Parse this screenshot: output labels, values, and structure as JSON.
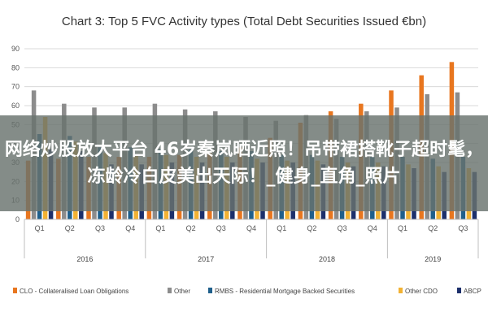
{
  "chart_data": {
    "type": "bar",
    "title": "Chart 3: Top 5 FVC Activity types (Total Debt Securities Issued €bn)",
    "ylim": [
      0,
      90
    ],
    "yticks": [
      "0",
      "10",
      "20",
      "30",
      "40",
      "50",
      "60",
      "70",
      "80",
      "90"
    ],
    "grid": true,
    "legend_position": "bottom",
    "categories": [
      "Q1",
      "Q2",
      "Q3",
      "Q4",
      "Q1",
      "Q2",
      "Q3",
      "Q4",
      "Q1",
      "Q2",
      "Q3",
      "Q4",
      "Q1",
      "Q2",
      "Q3"
    ],
    "groups": [
      {
        "label": "2016",
        "count": 4
      },
      {
        "label": "2017",
        "count": 4
      },
      {
        "label": "2018",
        "count": 4
      },
      {
        "label": "2019",
        "count": 3
      }
    ],
    "series": [
      {
        "name": "CLO - Collateralised Loan Obligations",
        "color": "#e8761f",
        "values": [
          31,
          32,
          33,
          33,
          33,
          34,
          35,
          38,
          43,
          51,
          57,
          61,
          68,
          76,
          83
        ]
      },
      {
        "name": "Other",
        "color": "#8c8c8c",
        "values": [
          68,
          61,
          59,
          59,
          61,
          58,
          57,
          54,
          52,
          55,
          53,
          57,
          59,
          66,
          67
        ]
      },
      {
        "name": "RMBS - Residential Mortgage Backed Securities",
        "color": "#1f5f8b",
        "values": [
          45,
          44,
          38,
          38,
          37,
          37,
          36,
          36,
          34,
          34,
          33,
          33,
          33,
          32,
          33
        ]
      },
      {
        "name": "Other CDO",
        "color": "#f2b233",
        "values": [
          54,
          41,
          35,
          34,
          34,
          33,
          33,
          32,
          31,
          31,
          30,
          30,
          29,
          28,
          27
        ]
      },
      {
        "name": "ABCP",
        "color": "#1c2f6b",
        "values": [
          37,
          36,
          29,
          29,
          30,
          30,
          30,
          30,
          30,
          29,
          28,
          28,
          27,
          25,
          25
        ]
      }
    ]
  },
  "overlay": {
    "text": "网络炒股放大平台 46岁秦岚晒近照！吊带裙搭靴子超时髦，冻龄冷白皮美出天际！_健身_直角_照片"
  }
}
